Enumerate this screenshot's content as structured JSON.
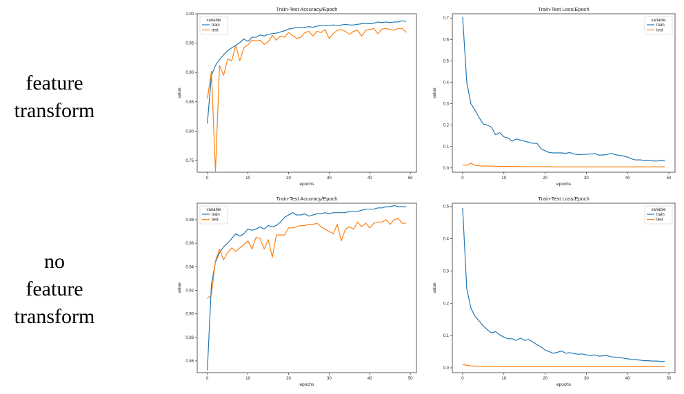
{
  "rows": [
    {
      "label_lines": [
        "feature",
        "transform"
      ]
    },
    {
      "label_lines": [
        "no",
        "feature",
        "transform"
      ]
    }
  ],
  "colors": {
    "train": "#1f77b4",
    "test": "#ff7f0e"
  },
  "chart_data": [
    {
      "type": "line",
      "title": "Train-Test Accuracy/Epoch",
      "xlabel": "epochs",
      "ylabel": "value",
      "xlim": [
        -2.5,
        51.5
      ],
      "ylim": [
        0.73,
        1.0
      ],
      "xticks": [
        "0",
        "10",
        "20",
        "30",
        "40",
        "50"
      ],
      "yticks": [
        "0.75",
        "0.80",
        "0.85",
        "0.90",
        "0.95",
        "1.00"
      ],
      "legend": {
        "title": "variable",
        "position": "upper-left"
      },
      "series": [
        {
          "name": "train",
          "values": [
            0.813,
            0.895,
            0.912,
            0.922,
            0.93,
            0.937,
            0.942,
            0.946,
            0.951,
            0.957,
            0.953,
            0.96,
            0.96,
            0.964,
            0.962,
            0.965,
            0.966,
            0.967,
            0.969,
            0.971,
            0.974,
            0.975,
            0.977,
            0.976,
            0.977,
            0.978,
            0.977,
            0.979,
            0.98,
            0.98,
            0.98,
            0.981,
            0.98,
            0.981,
            0.982,
            0.981,
            0.981,
            0.982,
            0.983,
            0.984,
            0.983,
            0.984,
            0.986,
            0.985,
            0.986,
            0.985,
            0.986,
            0.986,
            0.988,
            0.987
          ]
        },
        {
          "name": "test",
          "values": [
            0.855,
            0.902,
            0.73,
            0.912,
            0.895,
            0.923,
            0.92,
            0.946,
            0.92,
            0.942,
            0.947,
            0.955,
            0.954,
            0.955,
            0.948,
            0.952,
            0.963,
            0.955,
            0.962,
            0.96,
            0.968,
            0.963,
            0.958,
            0.96,
            0.968,
            0.97,
            0.962,
            0.97,
            0.968,
            0.973,
            0.958,
            0.966,
            0.972,
            0.973,
            0.97,
            0.965,
            0.97,
            0.972,
            0.962,
            0.972,
            0.973,
            0.975,
            0.966,
            0.974,
            0.975,
            0.973,
            0.972,
            0.975,
            0.975,
            0.968
          ]
        }
      ]
    },
    {
      "type": "line",
      "title": "Train-Test Loss/Epoch",
      "xlabel": "epochs",
      "ylabel": "value",
      "xlim": [
        -2.5,
        51.5
      ],
      "ylim": [
        -0.02,
        0.72
      ],
      "xticks": [
        "0",
        "10",
        "20",
        "30",
        "40",
        "50"
      ],
      "yticks": [
        "0.0",
        "0.1",
        "0.2",
        "0.3",
        "0.4",
        "0.5",
        "0.6",
        "0.7"
      ],
      "legend": {
        "title": "variable",
        "position": "upper-right"
      },
      "series": [
        {
          "name": "train",
          "values": [
            0.705,
            0.4,
            0.3,
            0.27,
            0.235,
            0.205,
            0.2,
            0.19,
            0.155,
            0.165,
            0.145,
            0.14,
            0.125,
            0.135,
            0.13,
            0.125,
            0.12,
            0.115,
            0.115,
            0.09,
            0.08,
            0.072,
            0.07,
            0.07,
            0.07,
            0.068,
            0.072,
            0.065,
            0.062,
            0.063,
            0.064,
            0.065,
            0.067,
            0.06,
            0.06,
            0.063,
            0.068,
            0.062,
            0.058,
            0.056,
            0.05,
            0.042,
            0.037,
            0.038,
            0.035,
            0.036,
            0.033,
            0.032,
            0.034,
            0.033
          ]
        },
        {
          "name": "test",
          "values": [
            0.015,
            0.012,
            0.022,
            0.012,
            0.01,
            0.009,
            0.009,
            0.008,
            0.008,
            0.007,
            0.007,
            0.007,
            0.007,
            0.007,
            0.006,
            0.006,
            0.006,
            0.006,
            0.006,
            0.006,
            0.006,
            0.006,
            0.005,
            0.005,
            0.005,
            0.005,
            0.005,
            0.005,
            0.005,
            0.005,
            0.005,
            0.005,
            0.005,
            0.005,
            0.005,
            0.005,
            0.005,
            0.005,
            0.005,
            0.005,
            0.005,
            0.005,
            0.005,
            0.005,
            0.005,
            0.005,
            0.005,
            0.005,
            0.005,
            0.005
          ]
        }
      ]
    },
    {
      "type": "line",
      "title": "Train-Test Accuracy/Epoch",
      "xlabel": "epochs",
      "ylabel": "value",
      "xlim": [
        -2.5,
        51.5
      ],
      "ylim": [
        0.85,
        0.994
      ],
      "xticks": [
        "0",
        "10",
        "20",
        "30",
        "40",
        "50"
      ],
      "yticks": [
        "0.86",
        "0.88",
        "0.90",
        "0.92",
        "0.94",
        "0.96",
        "0.98"
      ],
      "legend": {
        "title": "variable",
        "position": "upper-left"
      },
      "series": [
        {
          "name": "train",
          "values": [
            0.852,
            0.925,
            0.944,
            0.952,
            0.957,
            0.96,
            0.964,
            0.968,
            0.966,
            0.968,
            0.972,
            0.971,
            0.972,
            0.974,
            0.972,
            0.975,
            0.974,
            0.975,
            0.978,
            0.982,
            0.984,
            0.986,
            0.984,
            0.984,
            0.985,
            0.983,
            0.984,
            0.985,
            0.985,
            0.986,
            0.985,
            0.986,
            0.986,
            0.986,
            0.986,
            0.987,
            0.987,
            0.987,
            0.988,
            0.989,
            0.989,
            0.989,
            0.99,
            0.99,
            0.991,
            0.991,
            0.992,
            0.991,
            0.991,
            0.991
          ]
        },
        {
          "name": "test",
          "values": [
            0.913,
            0.916,
            0.945,
            0.955,
            0.946,
            0.952,
            0.956,
            0.953,
            0.956,
            0.959,
            0.962,
            0.955,
            0.965,
            0.964,
            0.955,
            0.963,
            0.948,
            0.967,
            0.967,
            0.967,
            0.973,
            0.973,
            0.974,
            0.975,
            0.975,
            0.976,
            0.976,
            0.977,
            0.974,
            0.972,
            0.97,
            0.968,
            0.976,
            0.962,
            0.972,
            0.974,
            0.972,
            0.978,
            0.974,
            0.977,
            0.973,
            0.977,
            0.978,
            0.978,
            0.98,
            0.976,
            0.98,
            0.981,
            0.977,
            0.977
          ]
        }
      ]
    },
    {
      "type": "line",
      "title": "Train-Test Loss/Epoch",
      "xlabel": "epochs",
      "ylabel": "value",
      "xlim": [
        -2.5,
        51.5
      ],
      "ylim": [
        -0.015,
        0.51
      ],
      "xticks": [
        "0",
        "10",
        "20",
        "30",
        "40",
        "50"
      ],
      "yticks": [
        "0.0",
        "0.1",
        "0.2",
        "0.3",
        "0.4",
        "0.5"
      ],
      "legend": {
        "title": "variable",
        "position": "upper-right"
      },
      "series": [
        {
          "name": "train",
          "values": [
            0.495,
            0.245,
            0.185,
            0.16,
            0.145,
            0.13,
            0.118,
            0.108,
            0.112,
            0.102,
            0.095,
            0.09,
            0.09,
            0.085,
            0.092,
            0.085,
            0.088,
            0.08,
            0.072,
            0.065,
            0.055,
            0.05,
            0.045,
            0.048,
            0.052,
            0.045,
            0.047,
            0.044,
            0.042,
            0.043,
            0.04,
            0.038,
            0.04,
            0.036,
            0.037,
            0.038,
            0.034,
            0.033,
            0.032,
            0.03,
            0.028,
            0.026,
            0.025,
            0.024,
            0.022,
            0.022,
            0.021,
            0.021,
            0.02,
            0.02
          ]
        },
        {
          "name": "test",
          "values": [
            0.01,
            0.008,
            0.006,
            0.005,
            0.005,
            0.005,
            0.005,
            0.005,
            0.005,
            0.005,
            0.004,
            0.004,
            0.004,
            0.004,
            0.004,
            0.004,
            0.004,
            0.004,
            0.004,
            0.004,
            0.004,
            0.004,
            0.004,
            0.004,
            0.004,
            0.004,
            0.004,
            0.004,
            0.004,
            0.004,
            0.004,
            0.004,
            0.004,
            0.004,
            0.004,
            0.004,
            0.004,
            0.004,
            0.004,
            0.004,
            0.004,
            0.004,
            0.004,
            0.004,
            0.004,
            0.004,
            0.004,
            0.004,
            0.004,
            0.004
          ]
        }
      ]
    }
  ]
}
